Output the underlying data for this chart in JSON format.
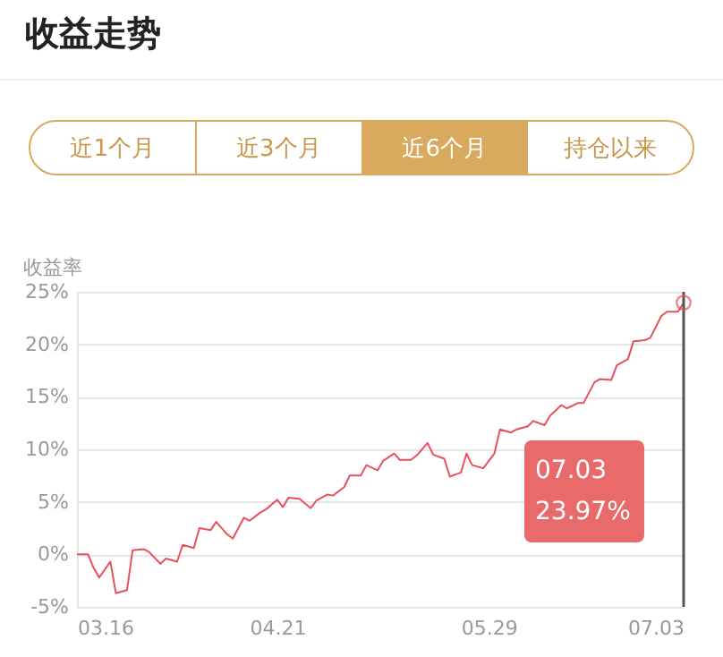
{
  "chart_data": {
    "type": "line",
    "title": "收益走势",
    "ylabel": "收益率",
    "x": [
      "--03-16",
      "--03-18",
      "--03-19",
      "--03-20",
      "--03-22",
      "--03-23",
      "--03-25",
      "--03-26",
      "--03-28",
      "--03-29",
      "--03-31",
      "--04-01",
      "--04-03",
      "--04-04",
      "--04-06",
      "--04-07",
      "--04-09",
      "--04-10",
      "--04-12",
      "--04-13",
      "--04-15",
      "--04-16",
      "--04-18",
      "--04-19",
      "--04-21",
      "--04-22",
      "--04-23",
      "--04-25",
      "--04-27",
      "--04-28",
      "--04-30",
      "--05-01",
      "--05-03",
      "--05-04",
      "--05-06",
      "--05-07",
      "--05-09",
      "--05-10",
      "--05-12",
      "--05-13",
      "--05-15",
      "--05-16",
      "--05-18",
      "--05-19",
      "--05-21",
      "--05-22",
      "--05-24",
      "--05-25",
      "--05-26",
      "--05-28",
      "--05-30",
      "--05-31",
      "--06-02",
      "--06-03",
      "--06-05",
      "--06-06",
      "--06-08",
      "--06-09",
      "--06-11",
      "--06-12",
      "--06-14",
      "--06-15",
      "--06-17",
      "--06-18",
      "--06-20",
      "--06-21",
      "--06-23",
      "--06-24",
      "--06-26",
      "--06-27",
      "--06-29",
      "--06-30",
      "--07-02",
      "--07-03"
    ],
    "series": [
      {
        "color": "#e8505b",
        "values": [
          0,
          0,
          -1.3,
          -2.2,
          -0.7,
          -3.7,
          -3.4,
          0.4,
          0.5,
          0.2,
          -0.9,
          -0.4,
          -0.7,
          0.9,
          0.6,
          2.5,
          2.3,
          3.1,
          1.9,
          1.5,
          3.5,
          3.2,
          4.0,
          4.3,
          5.2,
          4.5,
          5.4,
          5.3,
          4.4,
          5.1,
          5.7,
          5.6,
          6.4,
          7.5,
          7.5,
          8.5,
          8.0,
          8.9,
          9.6,
          9.0,
          9.0,
          9.4,
          10.6,
          9.5,
          9.1,
          7.4,
          7.8,
          9.6,
          8.5,
          8.2,
          9.6,
          11.9,
          11.6,
          11.9,
          12.2,
          12.7,
          12.3,
          13.2,
          14.2,
          13.9,
          14.4,
          14.4,
          16.4,
          16.7,
          16.6,
          18.0,
          18.6,
          20.3,
          20.4,
          20.6,
          22.7,
          23.1,
          23.1,
          23.97
        ]
      }
    ],
    "xlim": [
      "--03-16",
      "--07-03"
    ],
    "xticks": [
      {
        "value": "--03-16",
        "label": "03.16"
      },
      {
        "value": "--04-21",
        "label": "04.21"
      },
      {
        "value": "--05-29",
        "label": "05.29"
      },
      {
        "value": "--07-03",
        "label": "07.03"
      }
    ],
    "ylim": [
      -5,
      25
    ],
    "yticks": [
      {
        "value": -5,
        "label": "-5%"
      },
      {
        "value": 0,
        "label": "0%"
      },
      {
        "value": 5,
        "label": "5%"
      },
      {
        "value": 10,
        "label": "10%"
      },
      {
        "value": 15,
        "label": "15%"
      },
      {
        "value": 20,
        "label": "20%"
      },
      {
        "value": 25,
        "label": "25%"
      }
    ],
    "grid": "y",
    "legend": false,
    "marker": "none",
    "line_style": "solid",
    "ref_lines": [
      {
        "axis": "x",
        "value": "--07-03",
        "color": "#555555"
      }
    ],
    "annotations": [
      "近1个月",
      "近3个月",
      "近6个月",
      "持仓以来",
      "07.03",
      "23.97%"
    ]
  }
}
